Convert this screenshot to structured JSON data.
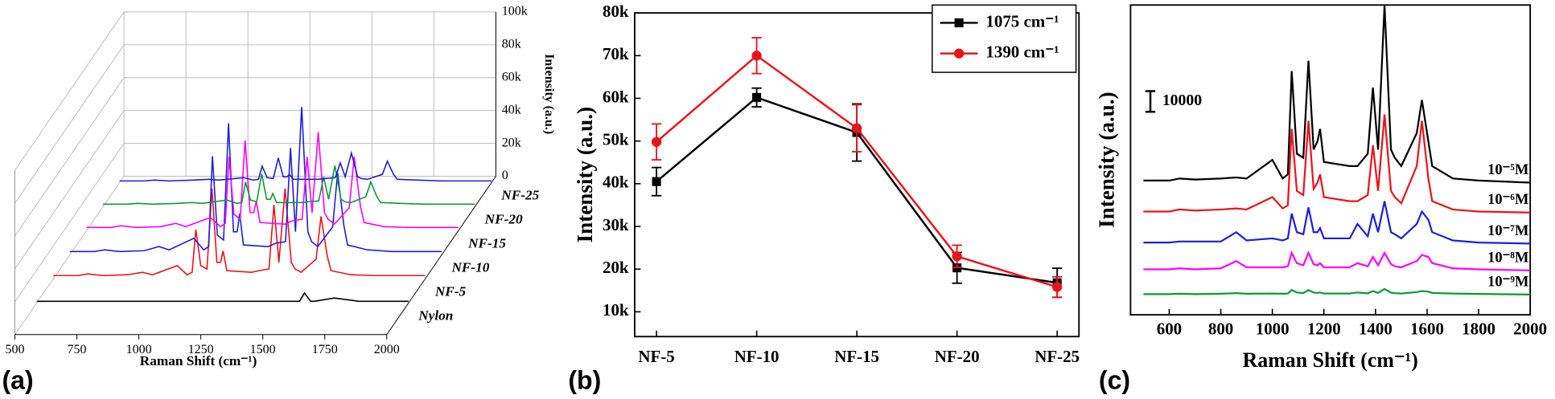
{
  "chart_data": [
    {
      "type": "waterfall",
      "panel_label": "(a)",
      "x_label": "Raman Shift (cm⁻¹)",
      "z_label": "Intensity (a.u.)",
      "xlim": [
        500,
        2000
      ],
      "xticks": [
        500,
        750,
        1000,
        1250,
        1500,
        1750,
        2000
      ],
      "zlim": [
        0,
        100000
      ],
      "zticks": [
        0,
        {
          "value": 20000,
          "label": "20k"
        },
        {
          "value": 40000,
          "label": "40k"
        },
        {
          "value": 60000,
          "label": "60k"
        },
        {
          "value": 80000,
          "label": "80k"
        },
        {
          "value": 100000,
          "label": "100k"
        }
      ],
      "x": [
        500,
        600,
        640,
        700,
        800,
        860,
        900,
        1000,
        1040,
        1060,
        1075,
        1095,
        1120,
        1140,
        1160,
        1175,
        1185,
        1200,
        1300,
        1330,
        1370,
        1390,
        1410,
        1435,
        1460,
        1475,
        1500,
        1560,
        1580,
        1605,
        1620,
        1700,
        1800,
        2000
      ],
      "series": [
        {
          "name": "Nylon",
          "color": "#000000",
          "values": [
            1000,
            1000,
            1000,
            1000,
            1000,
            1000,
            1000,
            1000,
            1000,
            1000,
            1000,
            1000,
            1000,
            1000,
            1000,
            1000,
            1000,
            1000,
            1000,
            1000,
            1000,
            1000,
            1000,
            1000,
            1000,
            1000,
            1000,
            1000,
            6000,
            1000,
            1000,
            3000,
            1000,
            1000
          ]
        },
        {
          "name": "NF-5",
          "color": "#e8141b",
          "values": [
            2000,
            2000,
            3000,
            2000,
            2500,
            4000,
            2500,
            8000,
            2500,
            4000,
            30000,
            8000,
            6000,
            55000,
            10000,
            10000,
            17000,
            5000,
            4000,
            5000,
            6000,
            45000,
            10000,
            55000,
            10000,
            6000,
            4000,
            12000,
            38000,
            14000,
            5000,
            2500,
            2000,
            2000
          ]
        },
        {
          "name": "NF-10",
          "color": "#1f1fd6",
          "values": [
            2000,
            2000,
            3000,
            2000,
            2500,
            5000,
            3000,
            10000,
            3000,
            5000,
            60000,
            12000,
            9000,
            80000,
            14000,
            14000,
            25000,
            6000,
            5000,
            7000,
            8000,
            65000,
            14000,
            90000,
            14000,
            8000,
            5000,
            17000,
            50000,
            18000,
            6000,
            3000,
            2000,
            2000
          ]
        },
        {
          "name": "NF-15",
          "color": "#ff00ff",
          "values": [
            2000,
            2000,
            3000,
            2000,
            2500,
            4500,
            2500,
            8000,
            2500,
            4500,
            45000,
            10000,
            7000,
            55000,
            11000,
            11000,
            18000,
            5000,
            4000,
            6000,
            7000,
            45000,
            11000,
            60000,
            11000,
            7000,
            4000,
            14000,
            45000,
            15000,
            5000,
            2500,
            2000,
            2000
          ]
        },
        {
          "name": "NF-20",
          "color": "#0b9b35",
          "values": [
            1500,
            1500,
            2000,
            1500,
            2000,
            2500,
            2000,
            4000,
            2000,
            2500,
            15000,
            4000,
            3000,
            20000,
            4500,
            4500,
            8000,
            2500,
            2500,
            3000,
            3500,
            18000,
            4500,
            25000,
            4500,
            3000,
            2500,
            6000,
            15000,
            6000,
            2500,
            2000,
            1500,
            1500
          ]
        },
        {
          "name": "NF-25",
          "color": "#1f1fd6",
          "values": [
            1000,
            1000,
            1500,
            1000,
            1500,
            2000,
            1500,
            3000,
            1500,
            2000,
            10000,
            3000,
            2500,
            15000,
            3500,
            3500,
            5000,
            2000,
            2000,
            2500,
            3000,
            12000,
            3500,
            18000,
            3500,
            2500,
            2000,
            5000,
            13000,
            5000,
            2000,
            1500,
            1000,
            1000
          ]
        }
      ]
    },
    {
      "type": "line",
      "panel_label": "(b)",
      "y_label": "Intensity (a.u.)",
      "categories": [
        "NF-5",
        "NF-10",
        "NF-15",
        "NF-20",
        "NF-25"
      ],
      "ylim": [
        4200,
        80000
      ],
      "yticks": [
        {
          "value": 10000,
          "label": "10k"
        },
        {
          "value": 20000,
          "label": "20k"
        },
        {
          "value": 30000,
          "label": "30k"
        },
        {
          "value": 40000,
          "label": "40k"
        },
        {
          "value": 50000,
          "label": "50k"
        },
        {
          "value": 60000,
          "label": "60k"
        },
        {
          "value": 70000,
          "label": "70k"
        },
        {
          "value": 80000,
          "label": "80k"
        }
      ],
      "series": [
        {
          "name": "1075 cm⁻¹",
          "color": "#000000",
          "marker": "square",
          "values": [
            40500,
            60200,
            52000,
            20300,
            16800
          ],
          "errors": [
            3300,
            2200,
            6700,
            3600,
            3400
          ]
        },
        {
          "name": "1390 cm⁻¹",
          "color": "#e8141b",
          "marker": "circle",
          "values": [
            49800,
            70000,
            53000,
            23000,
            15800
          ],
          "errors": [
            4200,
            4200,
            5500,
            2600,
            2400
          ]
        }
      ]
    },
    {
      "type": "spectra",
      "panel_label": "(c)",
      "x_label": "Raman Shift (cm⁻¹)",
      "y_label": "Intensity (a.u.)",
      "xlim": [
        450,
        2000
      ],
      "xticks": [
        600,
        800,
        1000,
        1200,
        1400,
        1600,
        1800,
        2000
      ],
      "ylim": [
        0,
        150000
      ],
      "scale_bar": 10000,
      "x": [
        500,
        600,
        640,
        700,
        800,
        860,
        900,
        1000,
        1040,
        1060,
        1075,
        1095,
        1120,
        1140,
        1160,
        1175,
        1185,
        1200,
        1300,
        1330,
        1370,
        1390,
        1410,
        1435,
        1460,
        1475,
        1500,
        1560,
        1580,
        1605,
        1620,
        1700,
        1800,
        2000
      ],
      "series": [
        {
          "name": "10⁻⁵M",
          "color": "#000000",
          "values": [
            65000,
            65000,
            66000,
            65500,
            66000,
            66500,
            66000,
            75000,
            66000,
            68000,
            118000,
            78000,
            76000,
            123000,
            80000,
            84000,
            90000,
            74000,
            72000,
            72000,
            78000,
            110000,
            80000,
            150000,
            80000,
            76000,
            72000,
            88000,
            104000,
            84000,
            72000,
            66000,
            65000,
            64000
          ]
        },
        {
          "name": "10⁻⁶M",
          "color": "#e8141b",
          "values": [
            50000,
            50000,
            51000,
            50500,
            51000,
            51500,
            51000,
            57000,
            51500,
            53000,
            90000,
            60000,
            58000,
            94000,
            61000,
            64000,
            68000,
            57000,
            55000,
            55000,
            58000,
            82000,
            60000,
            97000,
            60000,
            57000,
            54000,
            72000,
            94000,
            66000,
            55000,
            51000,
            50000,
            49500
          ]
        },
        {
          "name": "10⁻⁷M",
          "color": "#1f1fd6",
          "values": [
            35000,
            35000,
            35500,
            35500,
            35500,
            40000,
            36000,
            37000,
            36000,
            37000,
            49000,
            40000,
            39000,
            52000,
            40000,
            40000,
            42000,
            37000,
            37000,
            44000,
            38000,
            49000,
            40000,
            55000,
            40000,
            39000,
            37000,
            44000,
            50000,
            46000,
            40000,
            36000,
            35000,
            34500
          ]
        },
        {
          "name": "10⁻⁸M",
          "color": "#ff00ff",
          "values": [
            22000,
            22000,
            22500,
            22000,
            22500,
            26000,
            23000,
            23000,
            23000,
            23500,
            30000,
            25000,
            24000,
            30000,
            24500,
            24000,
            25000,
            23000,
            23000,
            25000,
            23500,
            28000,
            24000,
            30000,
            24500,
            23500,
            23000,
            26000,
            29000,
            28000,
            25000,
            22500,
            22000,
            21500
          ]
        },
        {
          "name": "10⁻⁹M",
          "color": "#0b9b35",
          "values": [
            10000,
            10000,
            10200,
            10000,
            10200,
            10500,
            10200,
            10300,
            10200,
            10300,
            12000,
            10800,
            10500,
            12000,
            10800,
            10600,
            10800,
            10300,
            10300,
            10800,
            10400,
            11500,
            10600,
            12500,
            10700,
            10500,
            10300,
            11000,
            11500,
            11200,
            10600,
            10300,
            10100,
            9800
          ]
        }
      ]
    }
  ]
}
